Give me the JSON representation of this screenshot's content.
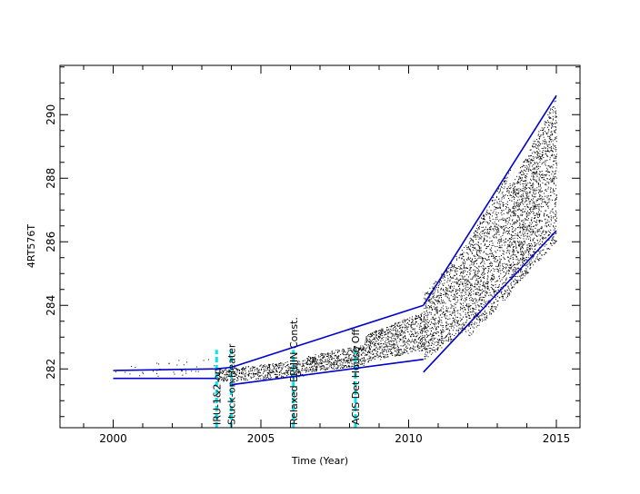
{
  "chart_data": {
    "type": "scatter",
    "title": "",
    "xlabel": "Time (Year)",
    "ylabel": "4RT576T",
    "xlim": [
      1998.2,
      2015.8
    ],
    "ylim": [
      280.15,
      291.55
    ],
    "xticks": [
      2000,
      2005,
      2010,
      2015
    ],
    "yticks": [
      282,
      284,
      286,
      288,
      290
    ],
    "grid": false,
    "colors": {
      "points": "#000000",
      "trend": "#0000cc",
      "events": "#00e5ee",
      "axes": "#000000"
    },
    "events": [
      {
        "x": 2003.5,
        "label": "IRU-1&2 on"
      },
      {
        "x": 2004.0,
        "label": "Stuck-on Heater"
      },
      {
        "x": 2006.1,
        "label": "Relaxed EPHIN Const."
      },
      {
        "x": 2008.2,
        "label": "ACIS Det House Off"
      }
    ],
    "series": [
      {
        "type": "line",
        "segments": [
          {
            "x": [
              2000.0,
              2003.5,
              2004.0
            ],
            "y": [
              281.95,
              282.0,
              282.05
            ]
          },
          {
            "x": [
              2004.0,
              2010.5
            ],
            "y": [
              282.05,
              284.0
            ]
          },
          {
            "x": [
              2010.5,
              2015.0
            ],
            "y": [
              284.0,
              290.6
            ]
          }
        ]
      },
      {
        "type": "line",
        "segments": [
          {
            "x": [
              2000.0,
              2003.5
            ],
            "y": [
              281.7,
              281.7
            ]
          },
          {
            "x": [
              2004.0,
              2010.5
            ],
            "y": [
              281.5,
              282.3
            ]
          },
          {
            "x": [
              2010.5,
              2015.0
            ],
            "y": [
              281.9,
              286.35
            ]
          }
        ]
      },
      {
        "type": "scatter",
        "density": [
          {
            "x": [
              2000.0,
              2003.5
            ],
            "y": [
              281.7,
              282.4
            ],
            "n": 40
          },
          {
            "x": [
              2003.5,
              2006.5
            ],
            "y": [
              281.6,
              282.3
            ],
            "n": 500
          },
          {
            "x": [
              2006.5,
              2008.5
            ],
            "y": [
              281.9,
              282.8
            ],
            "n": 500
          },
          {
            "x": [
              2008.5,
              2010.5
            ],
            "y": [
              282.2,
              283.8
            ],
            "n": 700
          },
          {
            "x": [
              2010.5,
              2012.0
            ],
            "y": [
              282.3,
              286.0
            ],
            "n": 900
          },
          {
            "x": [
              2012.0,
              2013.5
            ],
            "y": [
              283.0,
              288.5
            ],
            "n": 1200
          },
          {
            "x": [
              2013.5,
              2015.0
            ],
            "y": [
              284.5,
              290.6
            ],
            "n": 1500
          }
        ]
      }
    ]
  }
}
